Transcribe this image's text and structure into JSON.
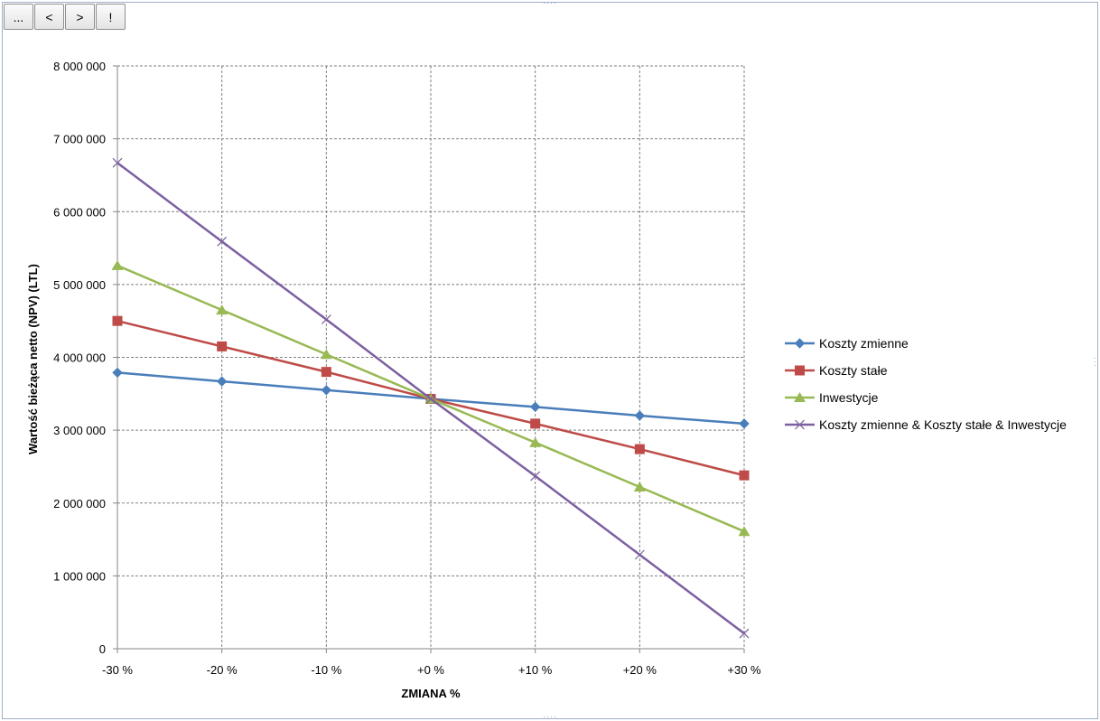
{
  "toolbar": {
    "buttons": [
      {
        "label": "...",
        "icon": "ellipsis-icon"
      },
      {
        "label": "<",
        "icon": "chevron-left-icon"
      },
      {
        "label": ">",
        "icon": "chevron-right-icon"
      },
      {
        "label": "!",
        "icon": "exclamation-icon"
      }
    ]
  },
  "chart_data": {
    "type": "line",
    "title": "",
    "xlabel": "ZMIANA %",
    "ylabel": "Wartość bieżąca netto (NPV) (LTL)",
    "categories": [
      "-30 %",
      "-20 %",
      "-10 %",
      "+0 %",
      "+10 %",
      "+20 %",
      "+30 %"
    ],
    "ylim": [
      0,
      8000000
    ],
    "yticks": [
      0,
      1000000,
      2000000,
      3000000,
      4000000,
      5000000,
      6000000,
      7000000,
      8000000
    ],
    "ytick_labels": [
      "0",
      "1 000 000",
      "2 000 000",
      "3 000 000",
      "4 000 000",
      "5 000 000",
      "6 000 000",
      "7 000 000",
      "8 000 000"
    ],
    "grid": true,
    "legend_position": "right",
    "series": [
      {
        "name": "Koszty zmienne",
        "color": "#4a7ebb",
        "marker": "diamond",
        "values": [
          3790000,
          3670000,
          3550000,
          3430000,
          3320000,
          3200000,
          3090000
        ]
      },
      {
        "name": "Koszty stałe",
        "color": "#be4b48",
        "marker": "square",
        "values": [
          4500000,
          4150000,
          3800000,
          3430000,
          3090000,
          2740000,
          2380000
        ]
      },
      {
        "name": "Inwestycje",
        "color": "#98b954",
        "marker": "triangle",
        "values": [
          5260000,
          4650000,
          4040000,
          3430000,
          2830000,
          2220000,
          1610000
        ]
      },
      {
        "name": "Koszty zmienne & Koszty stałe & Inwestycje",
        "color": "#7d60a0",
        "marker": "x",
        "values": [
          6670000,
          5590000,
          4520000,
          3430000,
          2370000,
          1290000,
          210000
        ]
      }
    ]
  }
}
